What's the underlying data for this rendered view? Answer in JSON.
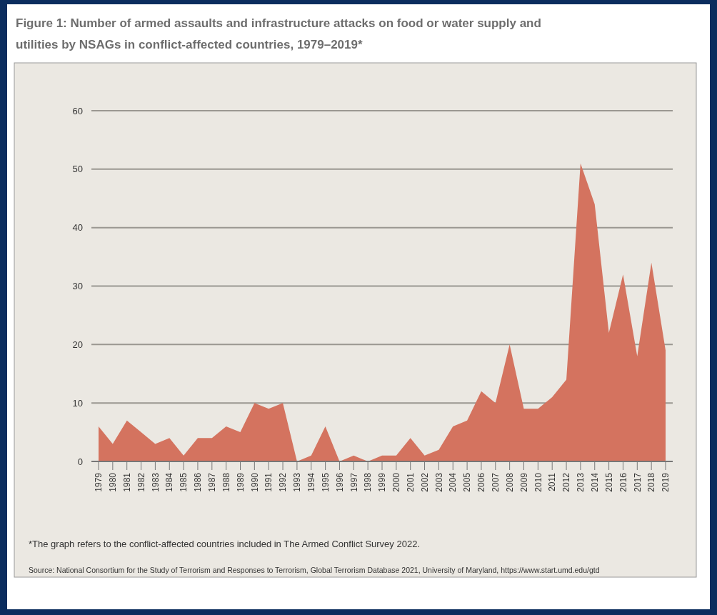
{
  "chart_data": {
    "type": "area",
    "title": "Figure 1: Number of armed assaults and infrastructure attacks on food or water supply and utilities by NSAGs in conflict-affected countries, 1979–2019*",
    "categories": [
      "1979",
      "1980",
      "1981",
      "1982",
      "1983",
      "1984",
      "1985",
      "1986",
      "1987",
      "1988",
      "1989",
      "1990",
      "1991",
      "1992",
      "1993",
      "1994",
      "1995",
      "1996",
      "1997",
      "1998",
      "1999",
      "2000",
      "2001",
      "2002",
      "2003",
      "2004",
      "2005",
      "2006",
      "2007",
      "2008",
      "2009",
      "2010",
      "2011",
      "2012",
      "2013",
      "2014",
      "2015",
      "2016",
      "2017",
      "2018",
      "2019"
    ],
    "values": [
      6,
      3,
      7,
      5,
      3,
      4,
      1,
      4,
      4,
      6,
      5,
      10,
      9,
      10,
      0,
      1,
      6,
      0,
      1,
      0,
      1,
      1,
      4,
      1,
      2,
      6,
      7,
      12,
      10,
      20,
      9,
      9,
      11,
      14,
      51,
      44,
      22,
      32,
      18,
      34,
      19
    ],
    "color": "#d4735f",
    "ylim": [
      0,
      60
    ],
    "yticks": [
      0,
      10,
      20,
      30,
      40,
      50,
      60
    ],
    "grid": "y",
    "annotations": [
      "*The graph refers to the conflict-affected countries included in The Armed Conflict Survey 2022.",
      "Source: National Consortium for the Study of Terrorism and Responses to Terrorism, Global Terrorism Database 2021, University of Maryland, https://www.start.umd.edu/gtd"
    ]
  }
}
